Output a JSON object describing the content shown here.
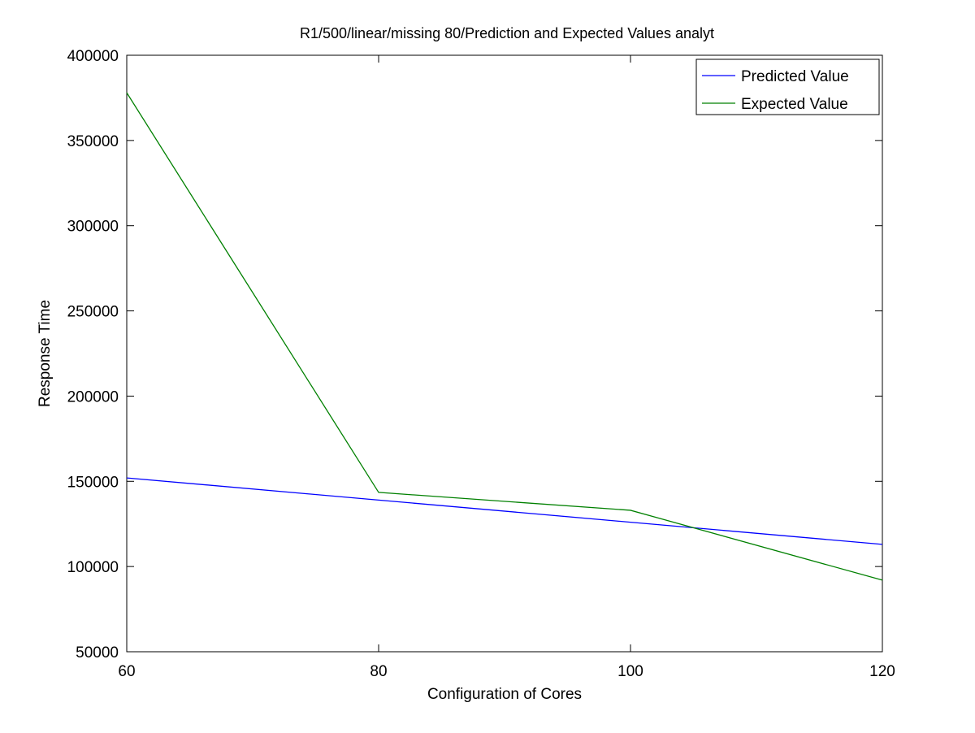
{
  "chart_data": {
    "type": "line",
    "title": "R1/500/linear/missing 80/Prediction and Expected Values analyt",
    "xlabel": "Configuration of Cores",
    "ylabel": "Response Time",
    "xlim": [
      60,
      120
    ],
    "ylim": [
      50000,
      400000
    ],
    "x_ticks": [
      60,
      80,
      100,
      120
    ],
    "y_ticks": [
      50000,
      100000,
      150000,
      200000,
      250000,
      300000,
      350000,
      400000
    ],
    "grid": false,
    "legend_position": "top-right",
    "x": [
      60,
      80,
      100,
      120
    ],
    "series": [
      {
        "name": "Predicted Value",
        "color": "#0000ff",
        "values": [
          152000,
          139000,
          126000,
          113000
        ]
      },
      {
        "name": "Expected Value",
        "color": "#008000",
        "values": [
          378000,
          143500,
          133000,
          92000
        ]
      }
    ]
  }
}
